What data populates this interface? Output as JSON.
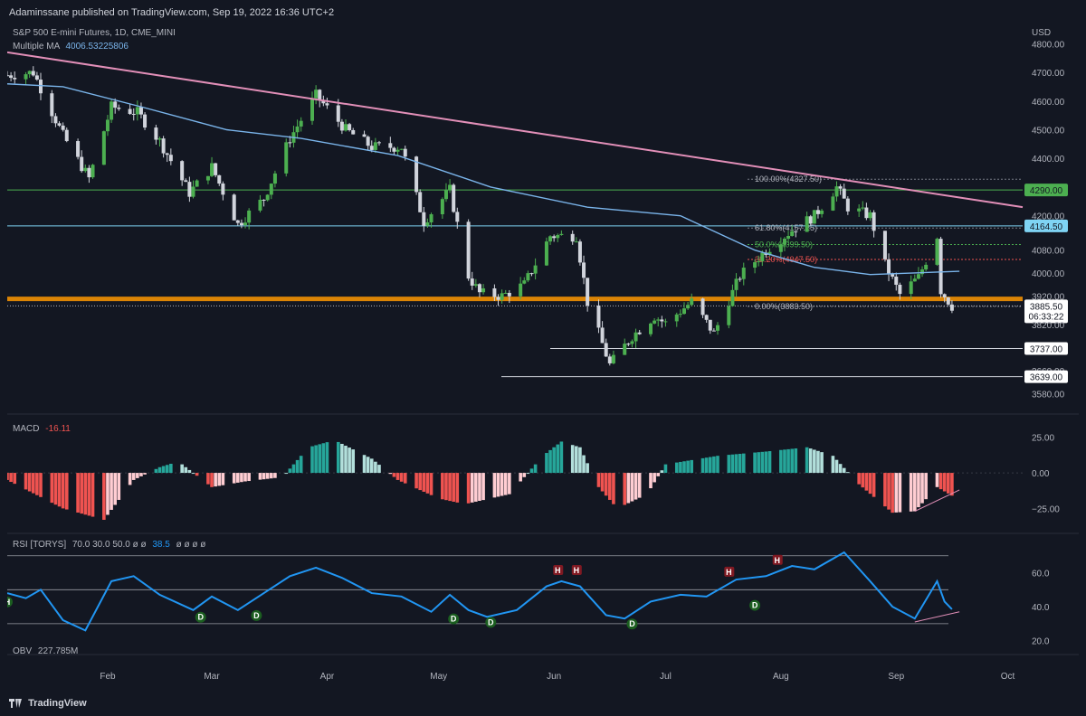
{
  "header": {
    "publisher_line": "Adaminssane published on TradingView.com, Sep 19, 2022 16:36 UTC+2"
  },
  "legend": {
    "symbol": "S&P 500 E-mini Futures, 1D, CME_MINI",
    "ma_label": "Multiple MA",
    "ma_value": "4006.53225806"
  },
  "currency": "USD",
  "footer": {
    "brand": "TradingView"
  },
  "colors": {
    "background": "#131722",
    "up": "#4caf50",
    "down": "#d1d4dc",
    "ma": "#7ab4ea",
    "trend": "#e28fb8",
    "support": "#ff9800",
    "rsi": "#2196f3",
    "macd_pos_strong": "#26a69a",
    "macd_pos_weak": "#b2dfdb",
    "macd_neg_strong": "#ef5350",
    "macd_neg_weak": "#ffcdd2"
  },
  "chart_data": [
    {
      "type": "candlestick",
      "title": "S&P 500 E-mini Futures, 1D, CME_MINI",
      "x_range": [
        "2022-01-05",
        "2022-10-05"
      ],
      "ylim": [
        3540,
        4820
      ],
      "yticks": [
        "4800.00",
        "4700.00",
        "4600.00",
        "4500.00",
        "4400.00",
        "4290.00",
        "4200.00",
        "4164.50",
        "4080.00",
        "4000.00",
        "3920.00",
        "3885.50",
        "3820.00",
        "3737.00",
        "3660.00",
        "3639.00",
        "3580.00"
      ],
      "xticks": [
        "Feb",
        "Mar",
        "Apr",
        "May",
        "Jun",
        "Jul",
        "Aug",
        "Sep",
        "Oct"
      ],
      "close_path": [
        [
          "2022-01-05",
          4690
        ],
        [
          "2022-01-12",
          4700
        ],
        [
          "2022-01-20",
          4480
        ],
        [
          "2022-01-27",
          4330
        ],
        [
          "2022-02-02",
          4580
        ],
        [
          "2022-02-09",
          4560
        ],
        [
          "2022-02-15",
          4460
        ],
        [
          "2022-02-23",
          4280
        ],
        [
          "2022-03-01",
          4370
        ],
        [
          "2022-03-08",
          4170
        ],
        [
          "2022-03-15",
          4260
        ],
        [
          "2022-03-22",
          4470
        ],
        [
          "2022-03-29",
          4620
        ],
        [
          "2022-04-06",
          4500
        ],
        [
          "2022-04-13",
          4440
        ],
        [
          "2022-04-21",
          4440
        ],
        [
          "2022-04-27",
          4180
        ],
        [
          "2022-05-04",
          4290
        ],
        [
          "2022-05-09",
          3990
        ],
        [
          "2022-05-12",
          3930
        ],
        [
          "2022-05-18",
          3920
        ],
        [
          "2022-05-24",
          3960
        ],
        [
          "2022-05-31",
          4130
        ],
        [
          "2022-06-07",
          4130
        ],
        [
          "2022-06-10",
          3900
        ],
        [
          "2022-06-16",
          3680
        ],
        [
          "2022-06-22",
          3780
        ],
        [
          "2022-06-28",
          3850
        ],
        [
          "2022-07-01",
          3825
        ],
        [
          "2022-07-08",
          3900
        ],
        [
          "2022-07-14",
          3790
        ],
        [
          "2022-07-21",
          3990
        ],
        [
          "2022-07-28",
          4080
        ],
        [
          "2022-08-04",
          4150
        ],
        [
          "2022-08-10",
          4200
        ],
        [
          "2022-08-16",
          4300
        ],
        [
          "2022-08-19",
          4230
        ],
        [
          "2022-08-25",
          4200
        ],
        [
          "2022-08-29",
          4030
        ],
        [
          "2022-09-02",
          3925
        ],
        [
          "2022-09-07",
          3985
        ],
        [
          "2022-09-12",
          4130
        ],
        [
          "2022-09-13",
          3940
        ],
        [
          "2022-09-16",
          3885
        ]
      ],
      "overlays": {
        "moving_average": [
          [
            "2022-01-05",
            4660
          ],
          [
            "2022-01-20",
            4650
          ],
          [
            "2022-02-10",
            4580
          ],
          [
            "2022-03-05",
            4500
          ],
          [
            "2022-03-25",
            4470
          ],
          [
            "2022-04-20",
            4410
          ],
          [
            "2022-05-15",
            4300
          ],
          [
            "2022-06-10",
            4230
          ],
          [
            "2022-07-05",
            4200
          ],
          [
            "2022-07-25",
            4080
          ],
          [
            "2022-08-10",
            4020
          ],
          [
            "2022-08-25",
            3995
          ],
          [
            "2022-09-05",
            4000
          ],
          [
            "2022-09-18",
            4006.5
          ]
        ],
        "trendline": [
          [
            "2022-01-05",
            4770
          ],
          [
            "2022-10-05",
            4230
          ]
        ],
        "horizontal_levels": [
          {
            "price": 4290,
            "label": "4290.00",
            "color": "#4caf50"
          },
          {
            "price": 4164.5,
            "label": "4164.50",
            "color": "#7fd4f4"
          },
          {
            "price": 3910,
            "label": "",
            "color": "#ff9800"
          },
          {
            "price": 3737,
            "label": "3737.00",
            "color": "#d1d4dc"
          },
          {
            "price": 3639,
            "label": "3639.00",
            "color": "#d1d4dc"
          }
        ],
        "fib_levels": [
          {
            "label": "100.00%(4327.50)",
            "price": 4327.5
          },
          {
            "label": "61.80%(4157.25)",
            "price": 4157.25
          },
          {
            "label": "50.0%(4099.50)",
            "price": 4099.5
          },
          {
            "label": "38.20%(4047.50)",
            "price": 4047.5
          },
          {
            "label": "0.00%(3883.50)",
            "price": 3883.5
          }
        ],
        "last_price": {
          "value": "3885.50",
          "countdown": "06:33:22"
        }
      }
    },
    {
      "type": "bar",
      "title": "MACD",
      "value_label": "-16.11",
      "ylim": [
        -40,
        35
      ],
      "yticks": [
        "25.00",
        "0.00",
        "−25.00"
      ],
      "histogram_path": [
        [
          "2022-01-05",
          -5
        ],
        [
          "2022-01-20",
          -25
        ],
        [
          "2022-01-31",
          -33
        ],
        [
          "2022-02-08",
          -5
        ],
        [
          "2022-02-15",
          4
        ],
        [
          "2022-02-20",
          8
        ],
        [
          "2022-03-01",
          -10
        ],
        [
          "2022-03-10",
          -6
        ],
        [
          "2022-03-20",
          -3
        ],
        [
          "2022-03-27",
          18
        ],
        [
          "2022-04-03",
          23
        ],
        [
          "2022-04-13",
          10
        ],
        [
          "2022-04-20",
          -5
        ],
        [
          "2022-05-01",
          -18
        ],
        [
          "2022-05-08",
          -22
        ],
        [
          "2022-05-20",
          -15
        ],
        [
          "2022-05-29",
          12
        ],
        [
          "2022-06-03",
          22
        ],
        [
          "2022-06-08",
          18
        ],
        [
          "2022-06-13",
          -10
        ],
        [
          "2022-06-18",
          -25
        ],
        [
          "2022-06-26",
          -15
        ],
        [
          "2022-07-01",
          6
        ],
        [
          "2022-07-15",
          12
        ],
        [
          "2022-07-28",
          15
        ],
        [
          "2022-08-08",
          18
        ],
        [
          "2022-08-15",
          12
        ],
        [
          "2022-08-22",
          -8
        ],
        [
          "2022-08-31",
          -28
        ],
        [
          "2022-09-06",
          -27
        ],
        [
          "2022-09-12",
          -10
        ],
        [
          "2022-09-16",
          -16
        ]
      ]
    },
    {
      "type": "line",
      "title": "RSI [TORYS]",
      "params": "70.0 30.0 50.0 ø ø",
      "value_label": "38.5",
      "params_tail": "ø ø ø ø",
      "ylim": [
        15,
        80
      ],
      "yticks": [
        "60.0",
        "40.0",
        "20.0"
      ],
      "bands": [
        70,
        50,
        30
      ],
      "series": [
        [
          "2022-01-05",
          48
        ],
        [
          "2022-01-10",
          45
        ],
        [
          "2022-01-14",
          50
        ],
        [
          "2022-01-20",
          32
        ],
        [
          "2022-01-26",
          26
        ],
        [
          "2022-02-02",
          55
        ],
        [
          "2022-02-08",
          58
        ],
        [
          "2022-02-15",
          47
        ],
        [
          "2022-02-24",
          38
        ],
        [
          "2022-03-01",
          46
        ],
        [
          "2022-03-08",
          38
        ],
        [
          "2022-03-15",
          48
        ],
        [
          "2022-03-22",
          58
        ],
        [
          "2022-03-29",
          63
        ],
        [
          "2022-04-05",
          57
        ],
        [
          "2022-04-13",
          48
        ],
        [
          "2022-04-21",
          46
        ],
        [
          "2022-04-29",
          37
        ],
        [
          "2022-05-04",
          47
        ],
        [
          "2022-05-09",
          38
        ],
        [
          "2022-05-14",
          34
        ],
        [
          "2022-05-22",
          38
        ],
        [
          "2022-05-30",
          52
        ],
        [
          "2022-06-03",
          55
        ],
        [
          "2022-06-08",
          52
        ],
        [
          "2022-06-15",
          35
        ],
        [
          "2022-06-20",
          33
        ],
        [
          "2022-06-27",
          43
        ],
        [
          "2022-07-05",
          47
        ],
        [
          "2022-07-12",
          46
        ],
        [
          "2022-07-20",
          56
        ],
        [
          "2022-07-28",
          58
        ],
        [
          "2022-08-04",
          64
        ],
        [
          "2022-08-10",
          62
        ],
        [
          "2022-08-18",
          72
        ],
        [
          "2022-08-25",
          55
        ],
        [
          "2022-08-31",
          40
        ],
        [
          "2022-09-06",
          33
        ],
        [
          "2022-09-12",
          55
        ],
        [
          "2022-09-14",
          43
        ],
        [
          "2022-09-16",
          38.5
        ]
      ],
      "markers": [
        {
          "date": "2022-01-05",
          "label": "H",
          "kind": "pivot-low",
          "value": 46
        },
        {
          "date": "2022-02-26",
          "label": "D",
          "kind": "pivot-low",
          "value": 37
        },
        {
          "date": "2022-03-13",
          "label": "D",
          "kind": "pivot-low",
          "value": 38
        },
        {
          "date": "2022-05-05",
          "label": "D",
          "kind": "pivot-low",
          "value": 36
        },
        {
          "date": "2022-05-15",
          "label": "D",
          "kind": "pivot-low",
          "value": 34
        },
        {
          "date": "2022-06-22",
          "label": "D",
          "kind": "pivot-low",
          "value": 33
        },
        {
          "date": "2022-07-25",
          "label": "D",
          "kind": "pivot-low",
          "value": 44
        },
        {
          "date": "2022-06-02",
          "label": "H",
          "kind": "pivot-high",
          "value": 56
        },
        {
          "date": "2022-06-07",
          "label": "H",
          "kind": "pivot-high",
          "value": 56
        },
        {
          "date": "2022-07-18",
          "label": "H",
          "kind": "pivot-high",
          "value": 55
        },
        {
          "date": "2022-07-31",
          "label": "H",
          "kind": "pivot-high",
          "value": 62
        }
      ],
      "divergence_line": [
        [
          "2022-09-06",
          31
        ],
        [
          "2022-09-18",
          37
        ]
      ]
    },
    {
      "type": "line",
      "title": "OBV",
      "value_label": "227.785M"
    }
  ]
}
